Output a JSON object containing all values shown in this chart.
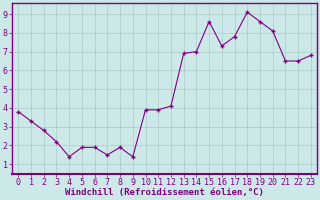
{
  "x": [
    0,
    1,
    2,
    3,
    4,
    5,
    6,
    7,
    8,
    9,
    10,
    11,
    12,
    13,
    14,
    15,
    16,
    17,
    18,
    19,
    20,
    21,
    22,
    23
  ],
  "y": [
    3.8,
    3.3,
    2.8,
    2.2,
    1.4,
    1.9,
    1.9,
    1.5,
    1.9,
    1.4,
    3.9,
    3.9,
    4.1,
    6.9,
    7.0,
    8.6,
    7.3,
    7.8,
    9.1,
    8.6,
    8.1,
    6.5,
    6.5,
    6.8
  ],
  "line_color": "#800080",
  "marker": "+",
  "bg_color": "#cce8e8",
  "grid_color": "#aacccc",
  "xlabel": "Windchill (Refroidissement éolien,°C)",
  "ylabel_ticks": [
    1,
    2,
    3,
    4,
    5,
    6,
    7,
    8,
    9
  ],
  "xlim": [
    -0.5,
    23.5
  ],
  "ylim": [
    0.5,
    9.6
  ],
  "axis_color": "#800080",
  "tick_color": "#800080",
  "label_color": "#800080",
  "label_fontsize": 6.5,
  "tick_fontsize": 6.0,
  "spine_color": "#800080"
}
